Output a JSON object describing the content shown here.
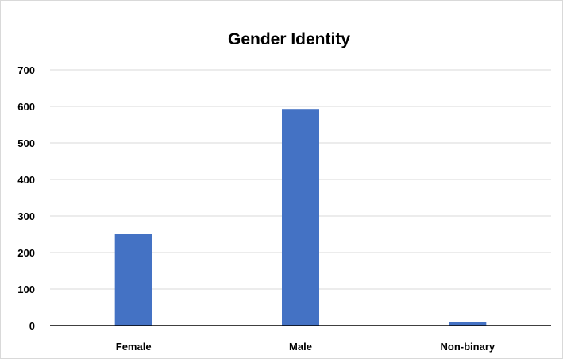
{
  "chart_data": {
    "type": "bar",
    "title": "Gender Identity",
    "xlabel": "",
    "ylabel": "",
    "categories": [
      "Female",
      "Male",
      "Non-binary"
    ],
    "values": [
      250,
      593,
      9
    ],
    "ylim": [
      0,
      700
    ],
    "yticks": [
      "0",
      "100",
      "200",
      "300",
      "400",
      "500",
      "600",
      "700"
    ],
    "grid": true,
    "legend": "none",
    "bar_color": "#4472c4",
    "grid_color": "#d9d9d9",
    "axis_color": "#000000"
  }
}
